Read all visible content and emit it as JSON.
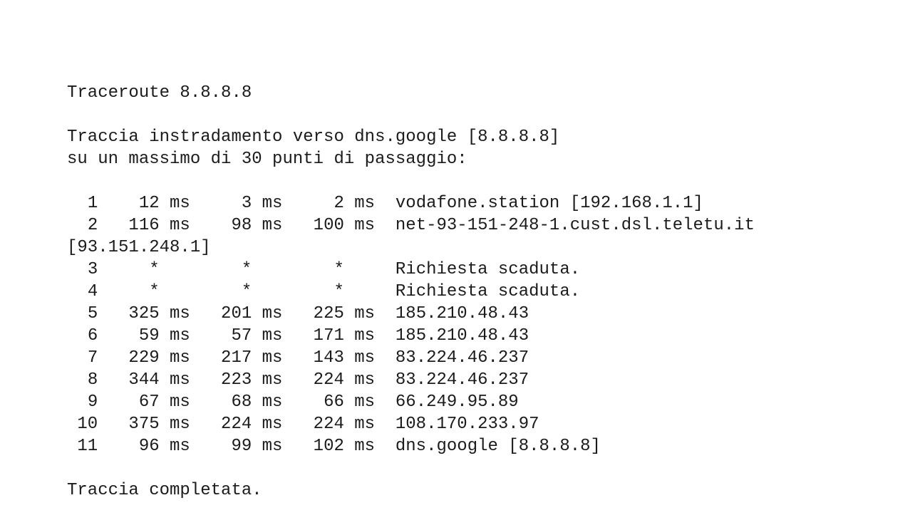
{
  "command": "Traceroute 8.8.8.8",
  "header": {
    "line1": "Traccia instradamento verso dns.google [8.8.8.8]",
    "line2": "su un massimo di 30 punti di passaggio:"
  },
  "hops": [
    {
      "n": "1",
      "t": [
        "12",
        "3",
        "2"
      ],
      "host": "vodafone.station [192.168.1.1]"
    },
    {
      "n": "2",
      "t": [
        "116",
        "98",
        "100"
      ],
      "host": "net-93-151-248-1.cust.dsl.teletu.it [93.151.248.1]"
    },
    {
      "n": "3",
      "t": [
        "*",
        "*",
        "*"
      ],
      "host": "Richiesta scaduta."
    },
    {
      "n": "4",
      "t": [
        "*",
        "*",
        "*"
      ],
      "host": "Richiesta scaduta."
    },
    {
      "n": "5",
      "t": [
        "325",
        "201",
        "225"
      ],
      "host": "185.210.48.43"
    },
    {
      "n": "6",
      "t": [
        "59",
        "57",
        "171"
      ],
      "host": "185.210.48.43"
    },
    {
      "n": "7",
      "t": [
        "229",
        "217",
        "143"
      ],
      "host": "83.224.46.237"
    },
    {
      "n": "8",
      "t": [
        "344",
        "223",
        "224"
      ],
      "host": "83.224.46.237"
    },
    {
      "n": "9",
      "t": [
        "67",
        "68",
        "66"
      ],
      "host": "66.249.95.89"
    },
    {
      "n": "10",
      "t": [
        "375",
        "224",
        "224"
      ],
      "host": "108.170.233.97"
    },
    {
      "n": "11",
      "t": [
        "96",
        "99",
        "102"
      ],
      "host": "dns.google [8.8.8.8]"
    }
  ],
  "unit": "ms",
  "footer": "Traccia completata."
}
